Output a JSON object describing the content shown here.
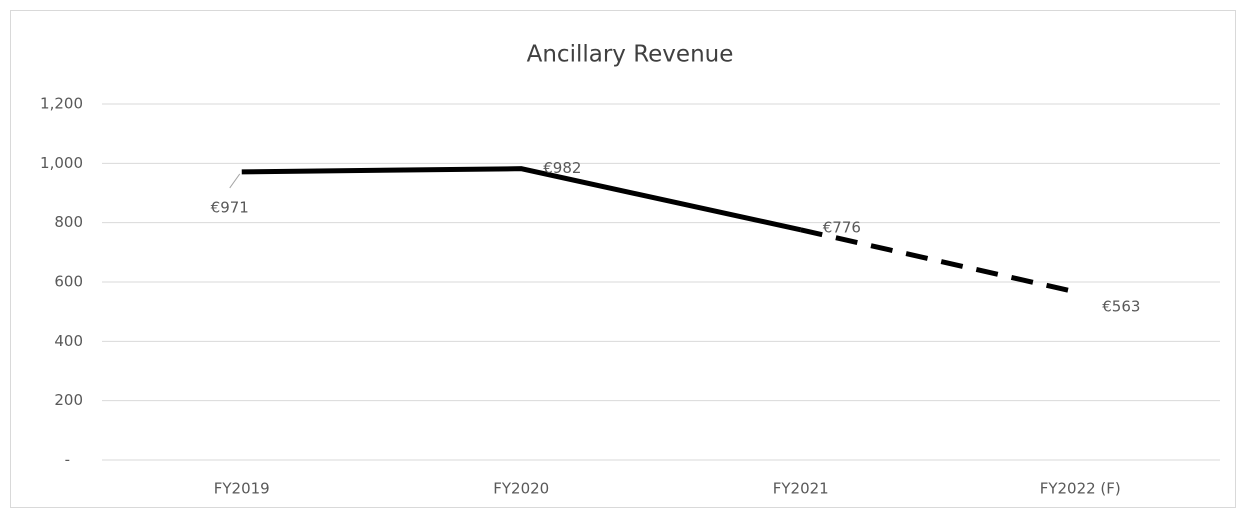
{
  "chart_data": {
    "type": "line",
    "title": "Ancillary Revenue",
    "categories": [
      "FY2019",
      "FY2020",
      "FY2021",
      "FY2022 (F)"
    ],
    "series": [
      {
        "name": "Ancillary Revenue",
        "color": "#000000",
        "values": [
          971,
          982,
          776,
          563
        ],
        "value_labels": [
          "€971",
          "€982",
          "€776",
          "€563"
        ],
        "dash_from_index": 2
      }
    ],
    "ylim": [
      0,
      1200
    ],
    "yticks": [
      {
        "value": 0,
        "label": "-"
      },
      200,
      400,
      600,
      800,
      {
        "value": 1000,
        "label": "1,000"
      },
      {
        "value": 1200,
        "label": "1,200"
      }
    ],
    "grid": true
  }
}
